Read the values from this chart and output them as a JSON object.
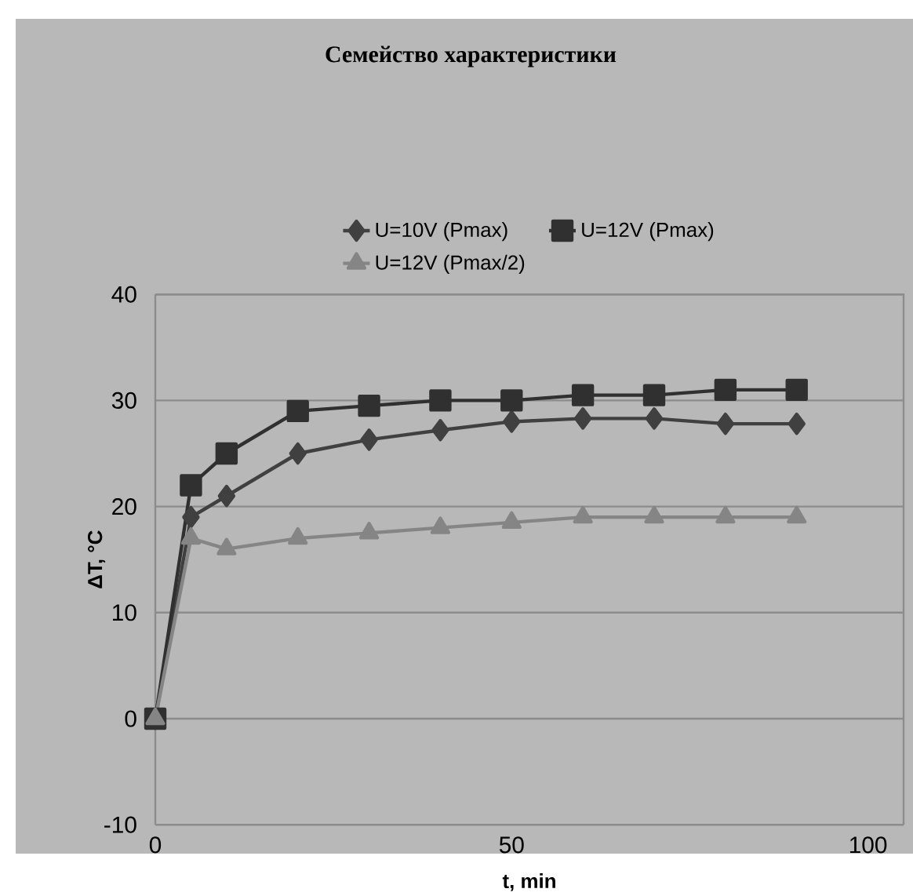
{
  "chart_data": {
    "type": "line",
    "title": "Семейство характеристики",
    "xlabel": "t, min",
    "ylabel": "ΔT, °C",
    "x": [
      0,
      5,
      10,
      20,
      30,
      40,
      50,
      60,
      70,
      80,
      90
    ],
    "series": [
      {
        "name": "U=10V (Pmax)",
        "color": "#404040",
        "marker": "diamond",
        "values": [
          0,
          19,
          21,
          25,
          26.3,
          27.2,
          28,
          28.3,
          28.3,
          27.8,
          27.8
        ]
      },
      {
        "name": "U=12V (Pmax)",
        "color": "#303030",
        "marker": "square",
        "values": [
          0,
          22,
          25,
          29,
          29.5,
          30,
          30,
          30.5,
          30.5,
          31,
          31
        ]
      },
      {
        "name": "U=12V (Pmax/2)",
        "color": "#858585",
        "marker": "triangle",
        "values": [
          0,
          17,
          16,
          17,
          17.5,
          18,
          18.5,
          19,
          19,
          19,
          19
        ]
      }
    ],
    "xlim": [
      0,
      105
    ],
    "ylim": [
      -10,
      40
    ],
    "xticks": [
      0,
      50,
      100
    ],
    "yticks": [
      -10,
      0,
      10,
      20,
      30,
      40
    ],
    "grid": "y",
    "legend": "top",
    "line_style": "solid"
  }
}
